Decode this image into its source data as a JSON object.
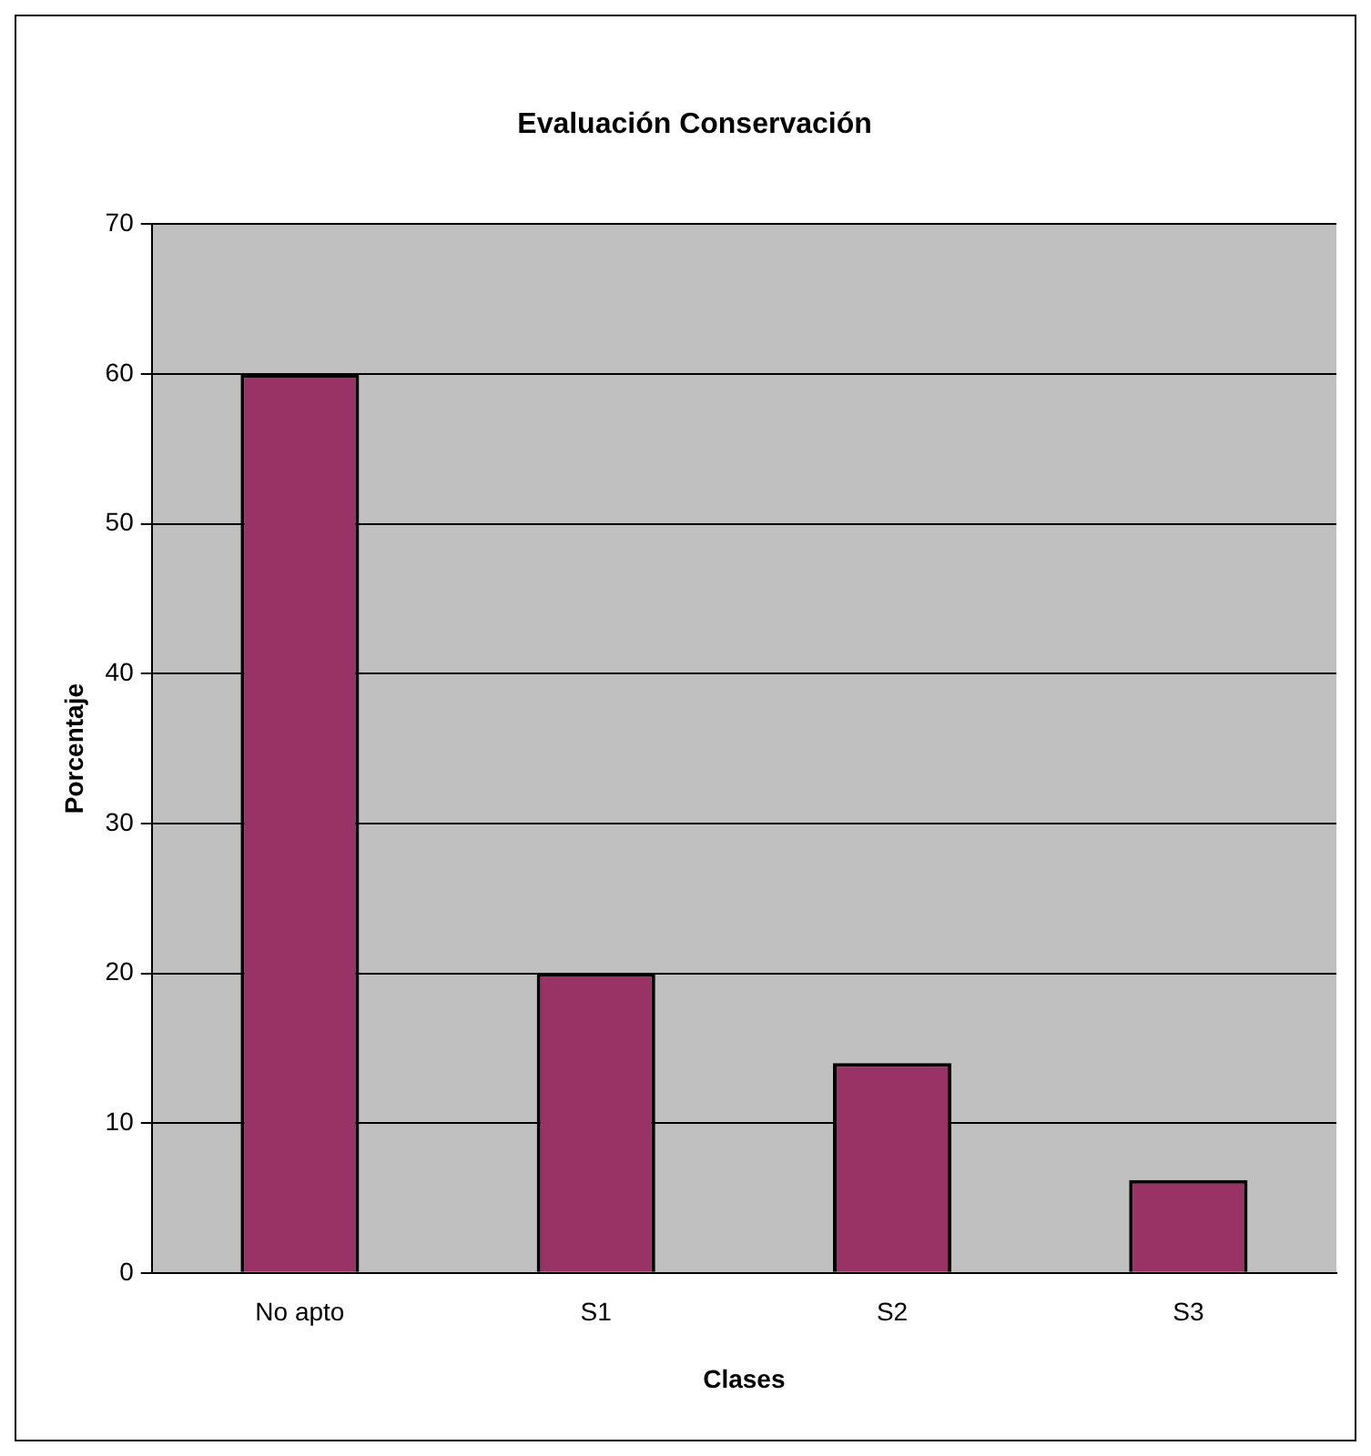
{
  "chart_data": {
    "type": "bar",
    "title": "Evaluación Conservación",
    "xlabel": "Clases",
    "ylabel": "Porcentaje",
    "categories": [
      "No apto",
      "S1",
      "S2",
      "S3"
    ],
    "values": [
      60,
      20,
      14,
      6.2
    ],
    "color": "#993366",
    "ylim": [
      0,
      70
    ],
    "yticks": [
      0,
      10,
      20,
      30,
      40,
      50,
      60,
      70
    ],
    "grid": "y",
    "legend": false
  }
}
